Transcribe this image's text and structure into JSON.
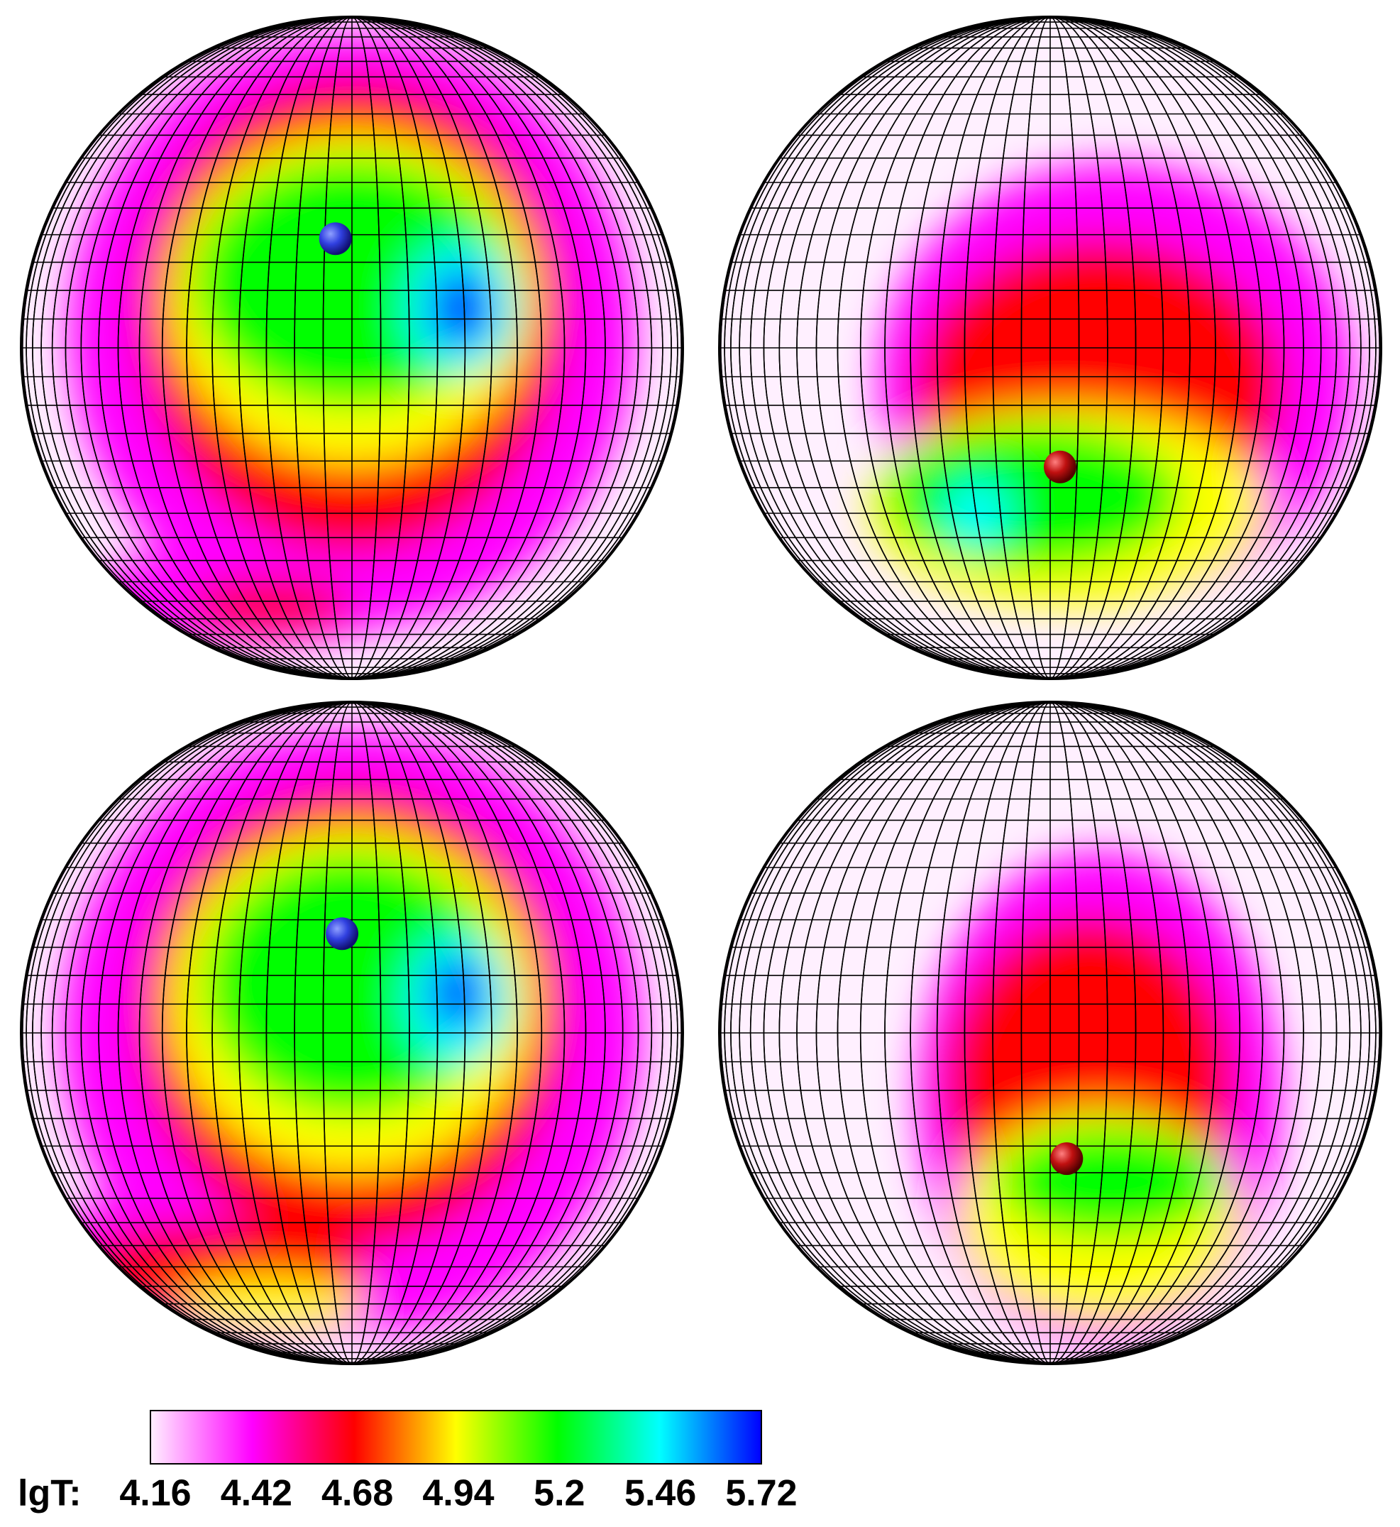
{
  "chart_data": {
    "type": "heatmap",
    "clabel": "lgT:",
    "clim": [
      4.16,
      5.72
    ],
    "cticks": [
      4.16,
      4.42,
      4.68,
      4.94,
      5.2,
      5.46,
      5.72
    ],
    "colors": [
      "#fff0ff",
      "#ff00ff",
      "#ff0000",
      "#ffff00",
      "#00ff00",
      "#00ffff",
      "#0000ff"
    ]
  }
}
